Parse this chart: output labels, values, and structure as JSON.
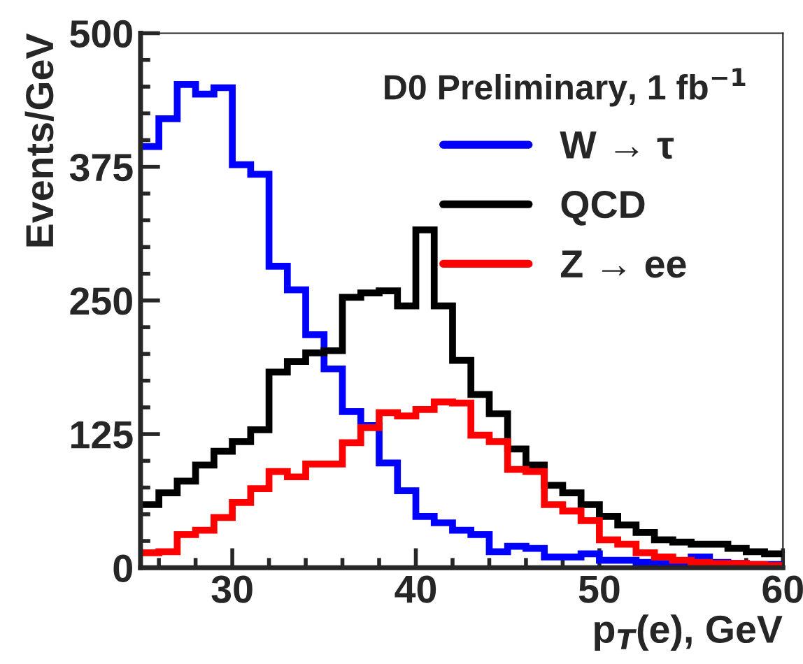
{
  "chart_data": {
    "type": "histogram",
    "xlabel": "p$_{T}$(e), GeV",
    "ylabel": "Events/GeV",
    "legend_title": "D0 Preliminary, 1 fb$^{−1}$",
    "legend": "top right",
    "grid": false,
    "bins": [
      25,
      26,
      27,
      28,
      29,
      30,
      31,
      32,
      33,
      34,
      35,
      36,
      37,
      38,
      39,
      40,
      41,
      42,
      43,
      44,
      45,
      46,
      47,
      48,
      49,
      50,
      51,
      52,
      53,
      54,
      55,
      56,
      57,
      58,
      59,
      60
    ],
    "xlim": [
      25,
      60
    ],
    "xticks": [
      30,
      40,
      50,
      60
    ],
    "ylim": [
      0,
      500
    ],
    "yticks": [
      0,
      125,
      250,
      375,
      500
    ],
    "series": [
      {
        "name": "W → τ",
        "color": "#0000ff",
        "values": [
          394,
          420,
          452,
          443,
          449,
          377,
          368,
          282,
          260,
          218,
          186,
          146,
          133,
          98,
          72,
          48,
          42,
          35,
          31,
          15,
          20,
          18,
          10,
          10,
          13,
          7,
          7,
          5,
          4,
          5,
          10,
          5,
          4,
          3,
          3
        ]
      },
      {
        "name": "QCD",
        "color": "#000000",
        "values": [
          59,
          70,
          81,
          96,
          109,
          118,
          129,
          183,
          193,
          201,
          203,
          253,
          257,
          259,
          245,
          316,
          245,
          194,
          162,
          144,
          111,
          96,
          77,
          70,
          59,
          48,
          40,
          33,
          26,
          24,
          22,
          22,
          18,
          15,
          13
        ]
      },
      {
        "name": "Z → ee",
        "color": "#ff0000",
        "values": [
          14,
          15,
          31,
          35,
          47,
          61,
          74,
          90,
          85,
          97,
          97,
          117,
          131,
          145,
          142,
          148,
          155,
          154,
          124,
          118,
          92,
          90,
          59,
          53,
          44,
          26,
          22,
          14,
          10,
          7,
          5,
          4,
          4,
          3,
          2
        ]
      }
    ]
  }
}
